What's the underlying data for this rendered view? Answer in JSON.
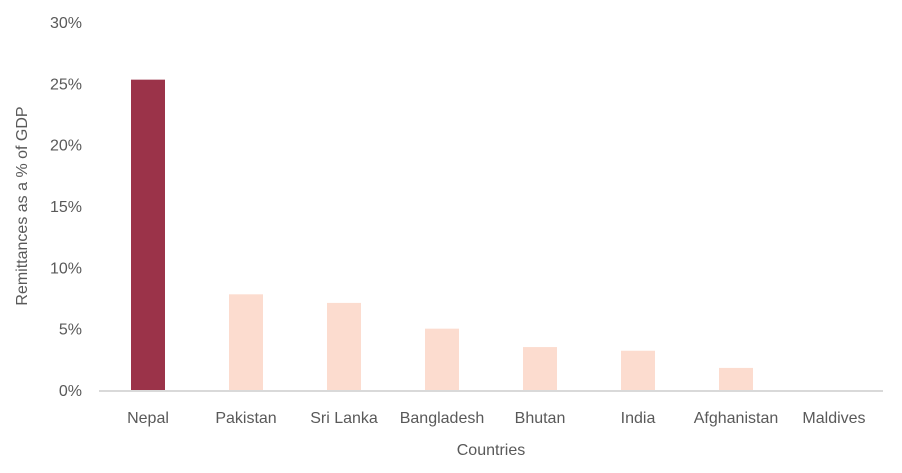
{
  "chart_data": {
    "type": "bar",
    "title": "",
    "xlabel": "Countries",
    "ylabel": "Remittances as a % of GDP",
    "categories": [
      "Nepal",
      "Pakistan",
      "Sri Lanka",
      "Bangladesh",
      "Bhutan",
      "India",
      "Afghanistan",
      "Maldives"
    ],
    "values": [
      25.3,
      7.8,
      7.1,
      5.0,
      3.5,
      3.2,
      1.8,
      0.0
    ],
    "ylim": [
      0,
      30
    ],
    "yticks": [
      "0%",
      "5%",
      "10%",
      "15%",
      "20%",
      "25%",
      "30%"
    ],
    "grid": false,
    "legend": "none",
    "colors": {
      "highlight": "#9b3349",
      "default": "#fcdccf",
      "axis": "#d9d9d9"
    },
    "highlight_index": 0
  }
}
